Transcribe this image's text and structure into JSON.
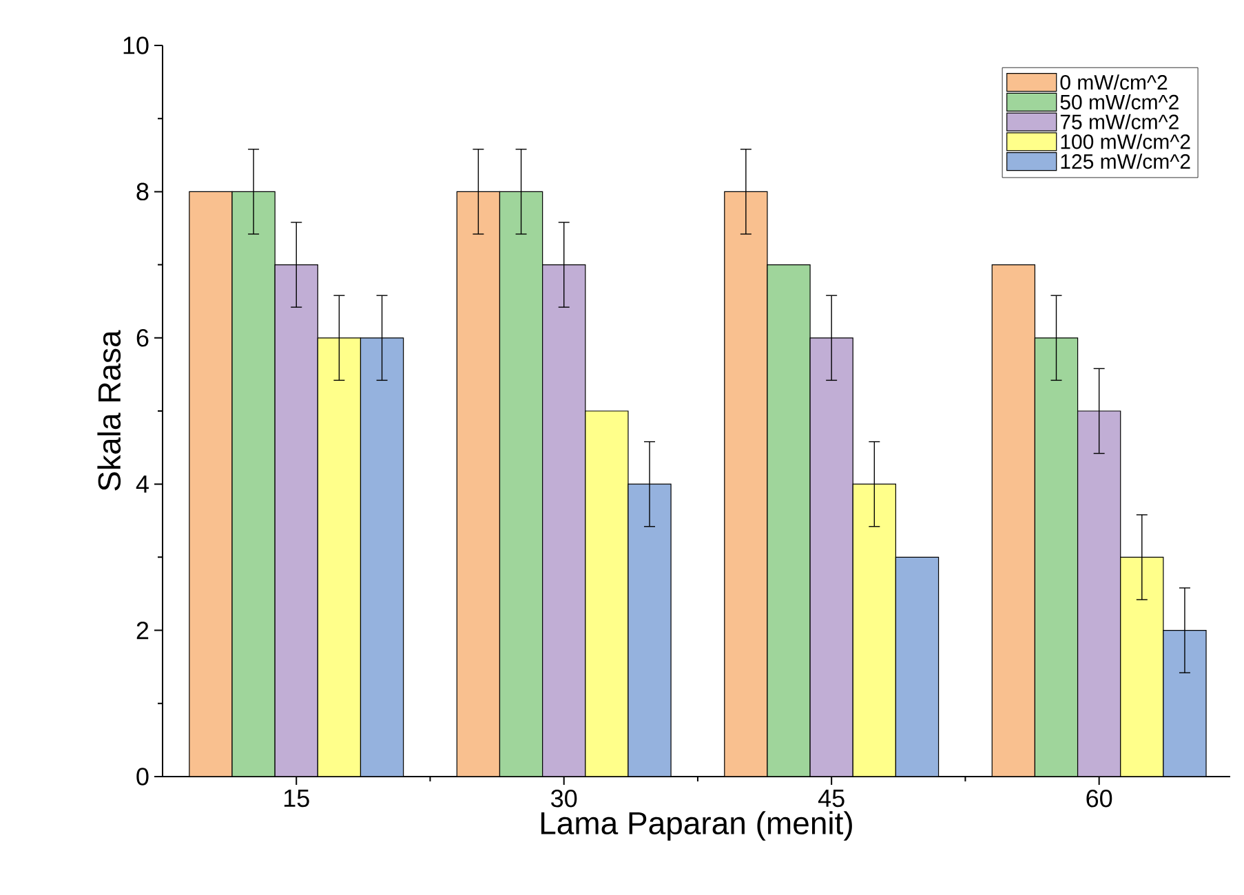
{
  "chart_data": {
    "type": "bar",
    "xlabel": "Lama Paparan (menit)",
    "ylabel": "Skala Rasa",
    "categories": [
      "15",
      "30",
      "45",
      "60"
    ],
    "series": [
      {
        "name": "0 mW/cm^2",
        "color": "#f9c08f",
        "values": [
          8,
          8,
          8,
          7
        ],
        "errors": [
          null,
          0.58,
          0.58,
          null
        ]
      },
      {
        "name": "50 mW/cm^2",
        "color": "#9fd59b",
        "values": [
          8,
          8,
          7,
          6
        ],
        "errors": [
          0.58,
          0.58,
          null,
          0.58
        ]
      },
      {
        "name": "75 mW/cm^2",
        "color": "#c1aed5",
        "values": [
          7,
          7,
          6,
          5
        ],
        "errors": [
          0.58,
          0.58,
          0.58,
          0.58
        ]
      },
      {
        "name": "100 mW/cm^2",
        "color": "#ffff8a",
        "values": [
          6,
          5,
          4,
          3
        ],
        "errors": [
          0.58,
          null,
          0.58,
          0.58
        ]
      },
      {
        "name": "125 mW/cm^2",
        "color": "#95b2de",
        "values": [
          6,
          4,
          3,
          2
        ],
        "errors": [
          0.58,
          0.58,
          null,
          0.58
        ]
      }
    ],
    "ylim": [
      0,
      10
    ],
    "yticks": [
      0,
      2,
      4,
      6,
      8,
      10
    ],
    "legend": "top right"
  }
}
